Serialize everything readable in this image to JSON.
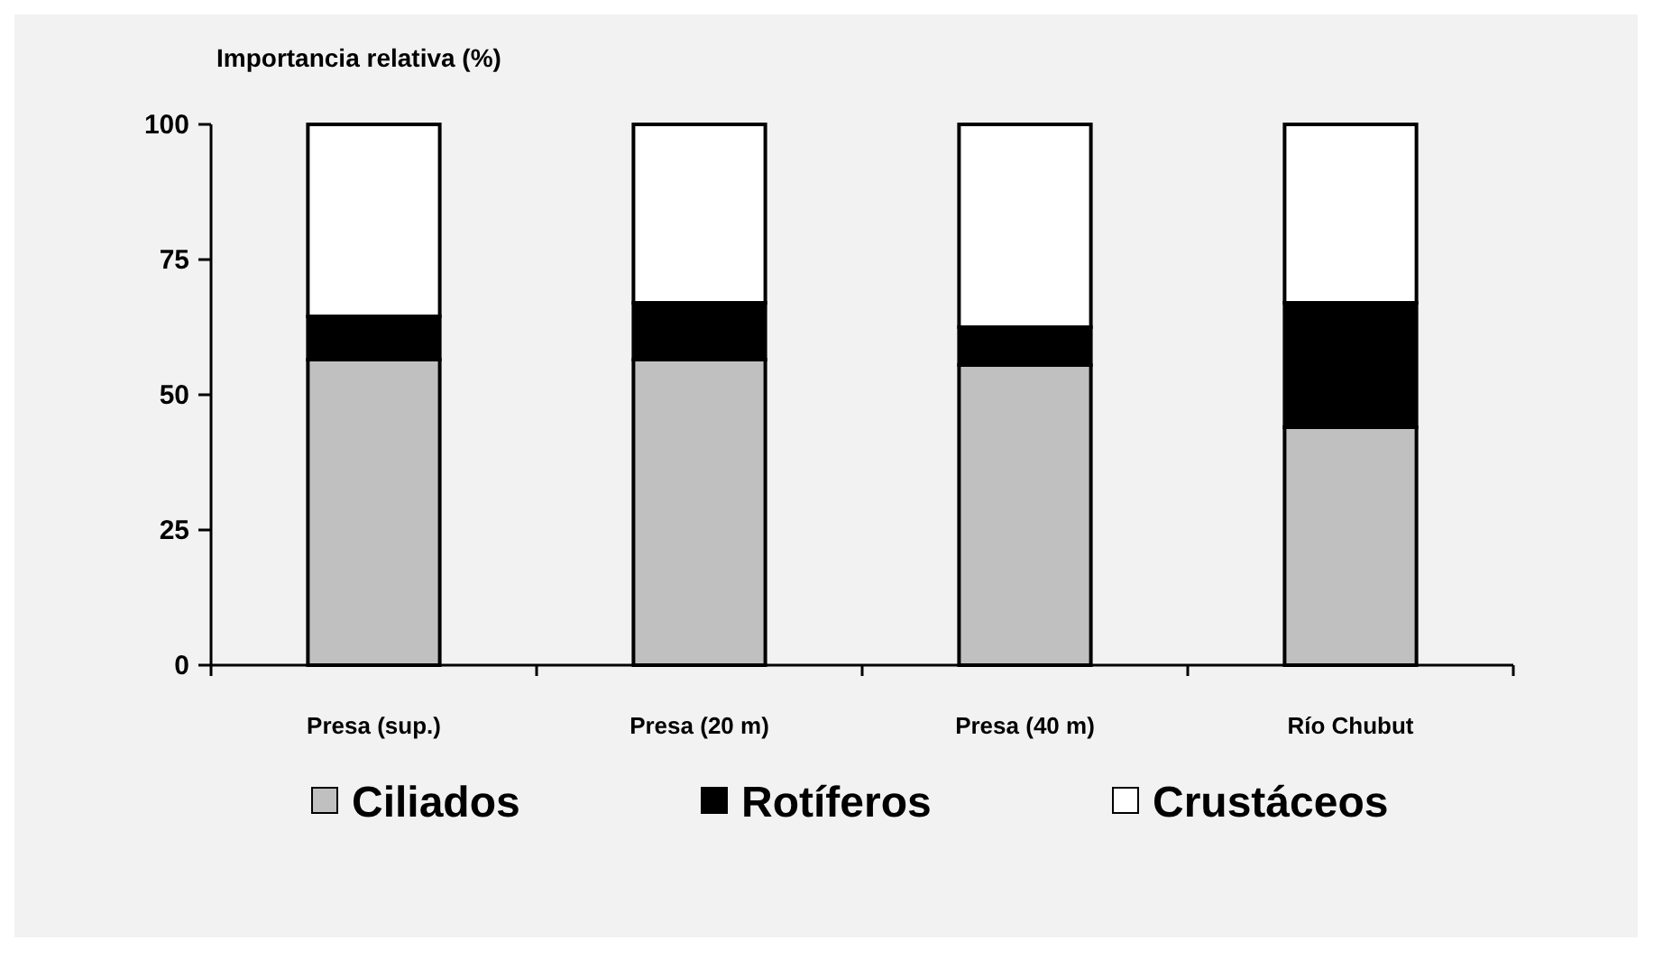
{
  "chart_data": {
    "type": "bar",
    "ylabel": "Importancia relativa (%)",
    "categories": [
      "Presa (sup.)",
      "Presa (20 m)",
      "Presa (40 m)",
      "Río Chubut"
    ],
    "series": [
      {
        "name": "Ciliados",
        "color": "#c0c0c0",
        "values": [
          56.5,
          56.5,
          55.5,
          44
        ]
      },
      {
        "name": "Rotíferos",
        "color": "#000000",
        "values": [
          8,
          10.5,
          7,
          23
        ]
      },
      {
        "name": "Crustáceos",
        "color": "#ffffff",
        "values": [
          35.5,
          33,
          37.5,
          33
        ]
      }
    ],
    "stacked": true,
    "ylim": [
      0,
      100
    ],
    "yticks": [
      0,
      25,
      50,
      75,
      100
    ],
    "legend": "bottom"
  }
}
